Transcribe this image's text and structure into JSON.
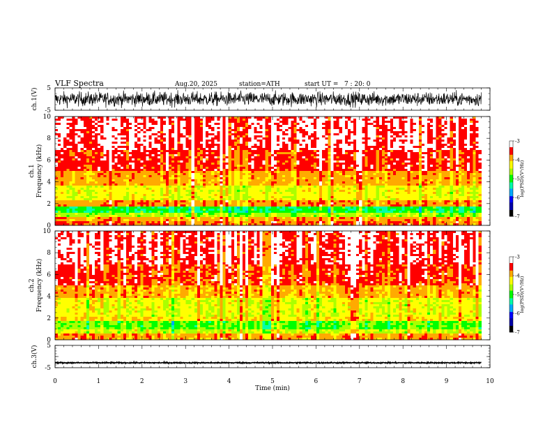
{
  "header": {
    "title": "VLF Spectra",
    "date": "Aug.20, 2025",
    "station": "station=ATH",
    "start_ut": "start UT =   7 : 20: 0"
  },
  "chart_data": [
    {
      "type": "line",
      "panel": "ch1-waveform",
      "ylabel": "ch.1(V)",
      "ylim": [
        -5,
        5
      ],
      "yticks": [
        5,
        -5
      ],
      "xlim": [
        0,
        10
      ],
      "trace_span_min": [
        0,
        9.8
      ],
      "approx_amplitude_V": [
        -3.5,
        3.5
      ],
      "color": "#000000"
    },
    {
      "type": "heatmap",
      "panel": "ch1-spectrogram",
      "ylabel": "ch.1\nFrequency (kHz)",
      "ylabel_lines": [
        "ch.1",
        "Frequency (kHz)"
      ],
      "ylim": [
        0,
        10
      ],
      "yticks": [
        0,
        2,
        4,
        6,
        8,
        10
      ],
      "xlim": [
        0,
        10
      ],
      "data_span_min": [
        0,
        9.8
      ],
      "colorbar": {
        "label": "log(PSD)(V²/Hz)",
        "range": [
          -7,
          -3
        ],
        "ticks": [
          -3,
          -4,
          -5,
          -6,
          -7
        ]
      },
      "band_levels_log_psd": [
        {
          "f_from_khz": 0.0,
          "f_to_khz": 0.3,
          "level": -3.7
        },
        {
          "f_from_khz": 0.3,
          "f_to_khz": 0.8,
          "level": -3.9
        },
        {
          "f_from_khz": 0.8,
          "f_to_khz": 1.2,
          "level": -4.6
        },
        {
          "f_from_khz": 1.2,
          "f_to_khz": 1.8,
          "level": -5.1
        },
        {
          "f_from_khz": 1.8,
          "f_to_khz": 2.3,
          "level": -3.8
        },
        {
          "f_from_khz": 2.3,
          "f_to_khz": 3.6,
          "level": -4.3
        },
        {
          "f_from_khz": 3.6,
          "f_to_khz": 5.0,
          "level": -3.9
        },
        {
          "f_from_khz": 5.0,
          "f_to_khz": 7.0,
          "level": -3.55
        },
        {
          "f_from_khz": 7.0,
          "f_to_khz": 10.0,
          "level": -3.35
        }
      ]
    },
    {
      "type": "heatmap",
      "panel": "ch2-spectrogram",
      "ylabel": "ch.2\nFrequency (kHz)",
      "ylabel_lines": [
        "ch.2",
        "Frequency (kHz)"
      ],
      "ylim": [
        0,
        10
      ],
      "yticks": [
        0,
        2,
        4,
        6,
        8,
        10
      ],
      "xlim": [
        0,
        10
      ],
      "data_span_min": [
        0,
        9.8
      ],
      "colorbar": {
        "label": "log(PSD)(V²/Hz)",
        "range": [
          -7,
          -3
        ],
        "ticks": [
          -3,
          -4,
          -5,
          -6,
          -7
        ]
      },
      "band_levels_log_psd": [
        {
          "f_from_khz": 0.0,
          "f_to_khz": 0.5,
          "level": -3.8
        },
        {
          "f_from_khz": 0.5,
          "f_to_khz": 1.0,
          "level": -4.4
        },
        {
          "f_from_khz": 1.0,
          "f_to_khz": 1.7,
          "level": -4.8
        },
        {
          "f_from_khz": 1.7,
          "f_to_khz": 2.2,
          "level": -4.1
        },
        {
          "f_from_khz": 2.2,
          "f_to_khz": 3.8,
          "level": -4.3
        },
        {
          "f_from_khz": 3.8,
          "f_to_khz": 5.0,
          "level": -3.9
        },
        {
          "f_from_khz": 5.0,
          "f_to_khz": 7.0,
          "level": -3.55
        },
        {
          "f_from_khz": 7.0,
          "f_to_khz": 10.0,
          "level": -3.35
        }
      ]
    },
    {
      "type": "line",
      "panel": "ch3-waveform",
      "ylabel": "ch.3(V)",
      "ylim": [
        -5,
        5
      ],
      "yticks": [
        5,
        0,
        -5
      ],
      "ytick_labels": [
        "5",
        "",
        "-5"
      ],
      "xlim": [
        0,
        10
      ],
      "trace_span_min": [
        0,
        9.8
      ],
      "approx_level_V": -2.8,
      "approx_amplitude_V": 0.25,
      "color": "#000000"
    }
  ],
  "xaxis": {
    "label": "Time (min)",
    "ticks": [
      "0",
      "1",
      "2",
      "3",
      "4",
      "5",
      "6",
      "7",
      "8",
      "9",
      "10"
    ],
    "range": [
      0,
      10
    ]
  },
  "colormap": [
    "#000000",
    "#0000aa",
    "#0000ff",
    "#00aaff",
    "#00ffaa",
    "#00ff00",
    "#aaff00",
    "#ffff00",
    "#ffaa00",
    "#ff0000",
    "#ffffff"
  ]
}
